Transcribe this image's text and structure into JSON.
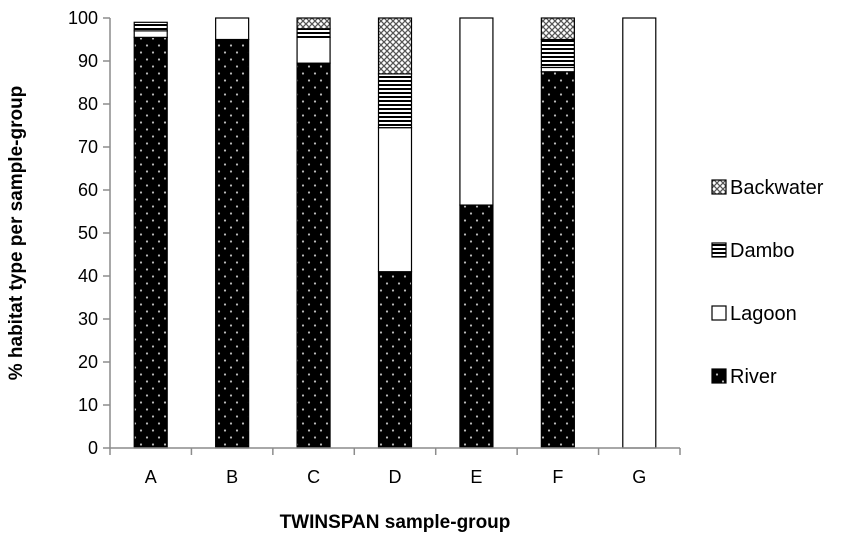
{
  "chart_data": {
    "type": "bar",
    "stacked": true,
    "title": "",
    "xlabel": "TWINSPAN sample-group",
    "ylabel": "% habitat type per sample-group",
    "ylim": [
      0,
      100
    ],
    "yticks": [
      "0",
      "10",
      "20",
      "30",
      "40",
      "50",
      "60",
      "70",
      "80",
      "90",
      "100"
    ],
    "grid": false,
    "legend_position": "right",
    "categories": [
      "A",
      "B",
      "C",
      "D",
      "E",
      "F",
      "G"
    ],
    "series": [
      {
        "name": "River",
        "values": [
          95.5,
          95,
          89.5,
          41,
          56.5,
          87.5,
          0
        ],
        "color": "#000000",
        "pattern": "dots"
      },
      {
        "name": "Lagoon",
        "values": [
          1.5,
          5,
          6,
          33.5,
          43.5,
          1,
          100
        ],
        "color": "#ffffff",
        "pattern": "none"
      },
      {
        "name": "Dambo",
        "values": [
          2,
          0,
          2,
          12.5,
          0,
          6.5,
          0
        ],
        "color": "#ffffff",
        "pattern": "horizontal-lines"
      },
      {
        "name": "Backwater",
        "values": [
          0,
          0,
          2.5,
          13,
          0,
          5,
          0
        ],
        "color": "#ffffff",
        "pattern": "crosshatch"
      }
    ]
  }
}
